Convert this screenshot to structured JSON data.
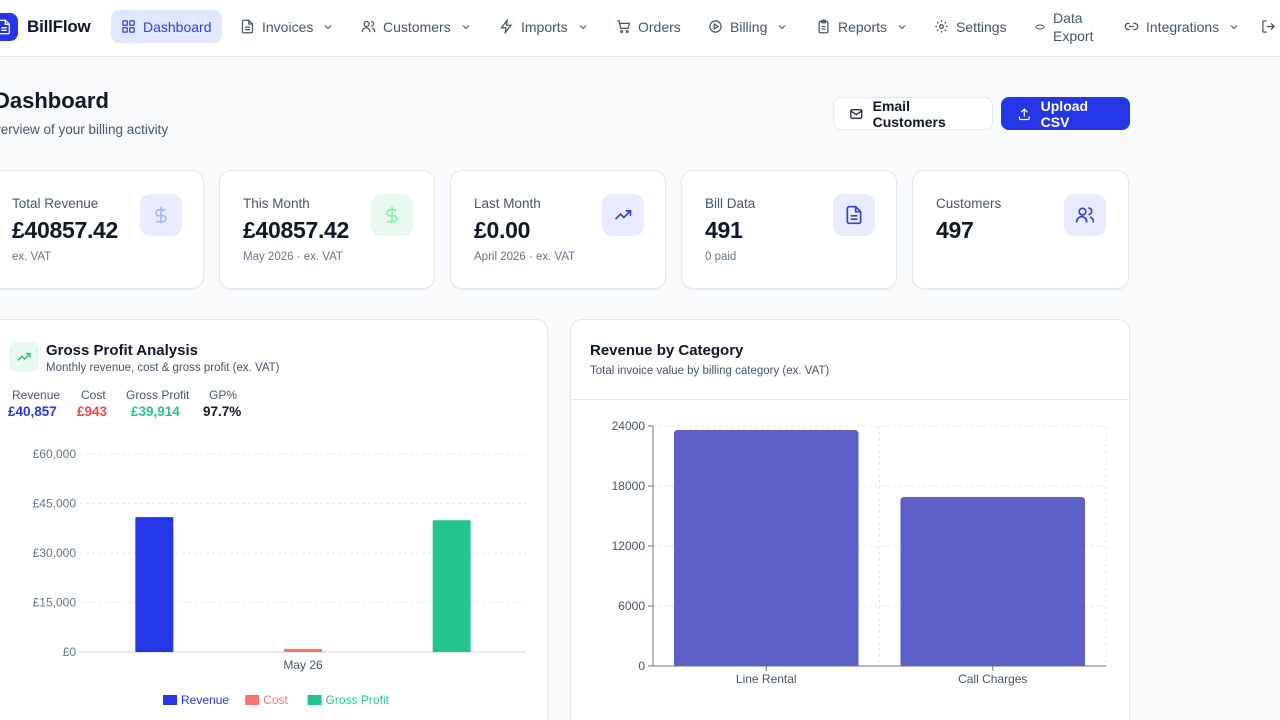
{
  "app": {
    "name": "BillFlow"
  },
  "nav": {
    "items": [
      {
        "label": "Dashboard",
        "icon": "grid-icon"
      },
      {
        "label": "Invoices",
        "icon": "document-icon"
      },
      {
        "label": "Customers",
        "icon": "users-icon"
      },
      {
        "label": "Imports",
        "icon": "bolt-icon"
      },
      {
        "label": "Orders",
        "icon": "cart-icon"
      },
      {
        "label": "Billing",
        "icon": "play-circle-icon"
      },
      {
        "label": "Reports",
        "icon": "clipboard-icon"
      },
      {
        "label": "Settings",
        "icon": "gear-icon"
      },
      {
        "label_line1": "Data",
        "label_line2": "Export",
        "icon": "database-icon"
      },
      {
        "label": "Integrations",
        "icon": "link-icon"
      }
    ]
  },
  "header": {
    "title": "Dashboard",
    "subtitle": "verview of your billing activity",
    "email_button": "Email Customers",
    "upload_button": "Upload CSV"
  },
  "stats": [
    {
      "label": "Total Revenue",
      "value": "£40857.42",
      "note": "ex. VAT",
      "icon": "dollar-icon"
    },
    {
      "label": "This Month",
      "value": "£40857.42",
      "note": "May 2026 · ex. VAT",
      "icon": "dollar-icon"
    },
    {
      "label": "Last Month",
      "value": "£0.00",
      "note": "April 2026 · ex. VAT",
      "icon": "trending-up-icon"
    },
    {
      "label": "Bill Data",
      "value": "491",
      "note": "0 paid",
      "icon": "file-icon"
    },
    {
      "label": "Customers",
      "value": "497",
      "note": "",
      "icon": "users-icon"
    }
  ],
  "gross_profit": {
    "title": "Gross Profit Analysis",
    "subtitle": "Monthly revenue, cost & gross profit (ex. VAT)",
    "summary": [
      {
        "label": "Revenue",
        "value": "£40,857",
        "color": "#2536e6"
      },
      {
        "label": "Cost",
        "value": "£943",
        "color": "#ef4444"
      },
      {
        "label": "Gross Profit",
        "value": "£39,914",
        "color": "#22c58e"
      },
      {
        "label": "GP%",
        "value": "97.7%",
        "color": "#0f172a"
      }
    ]
  },
  "revenue_category": {
    "title": "Revenue by Category",
    "subtitle": "Total invoice value by billing category (ex. VAT)"
  },
  "chart_data": [
    {
      "type": "bar",
      "categories": [
        "May 26"
      ],
      "series": [
        {
          "name": "Revenue",
          "values": [
            40857
          ],
          "color": "#2536e6"
        },
        {
          "name": "Cost",
          "values": [
            943
          ],
          "color": "#f87171"
        },
        {
          "name": "Gross Profit",
          "values": [
            39914
          ],
          "color": "#22c58e"
        }
      ],
      "ylim": [
        0,
        60000
      ],
      "yticks": [
        0,
        15000,
        30000,
        45000,
        60000
      ],
      "ytick_labels": [
        "£0",
        "£15,000",
        "£30,000",
        "£45,000",
        "£60,000"
      ],
      "grid": true,
      "legend": "bottom"
    },
    {
      "type": "bar",
      "categories": [
        "Line Rental",
        "Call Charges"
      ],
      "values": [
        23600,
        16900
      ],
      "color": "#5b5fc7",
      "ylim": [
        0,
        24000
      ],
      "yticks": [
        0,
        6000,
        12000,
        18000,
        24000
      ],
      "ytick_labels": [
        "0",
        "6000",
        "12000",
        "18000",
        "24000"
      ],
      "grid": true
    }
  ]
}
